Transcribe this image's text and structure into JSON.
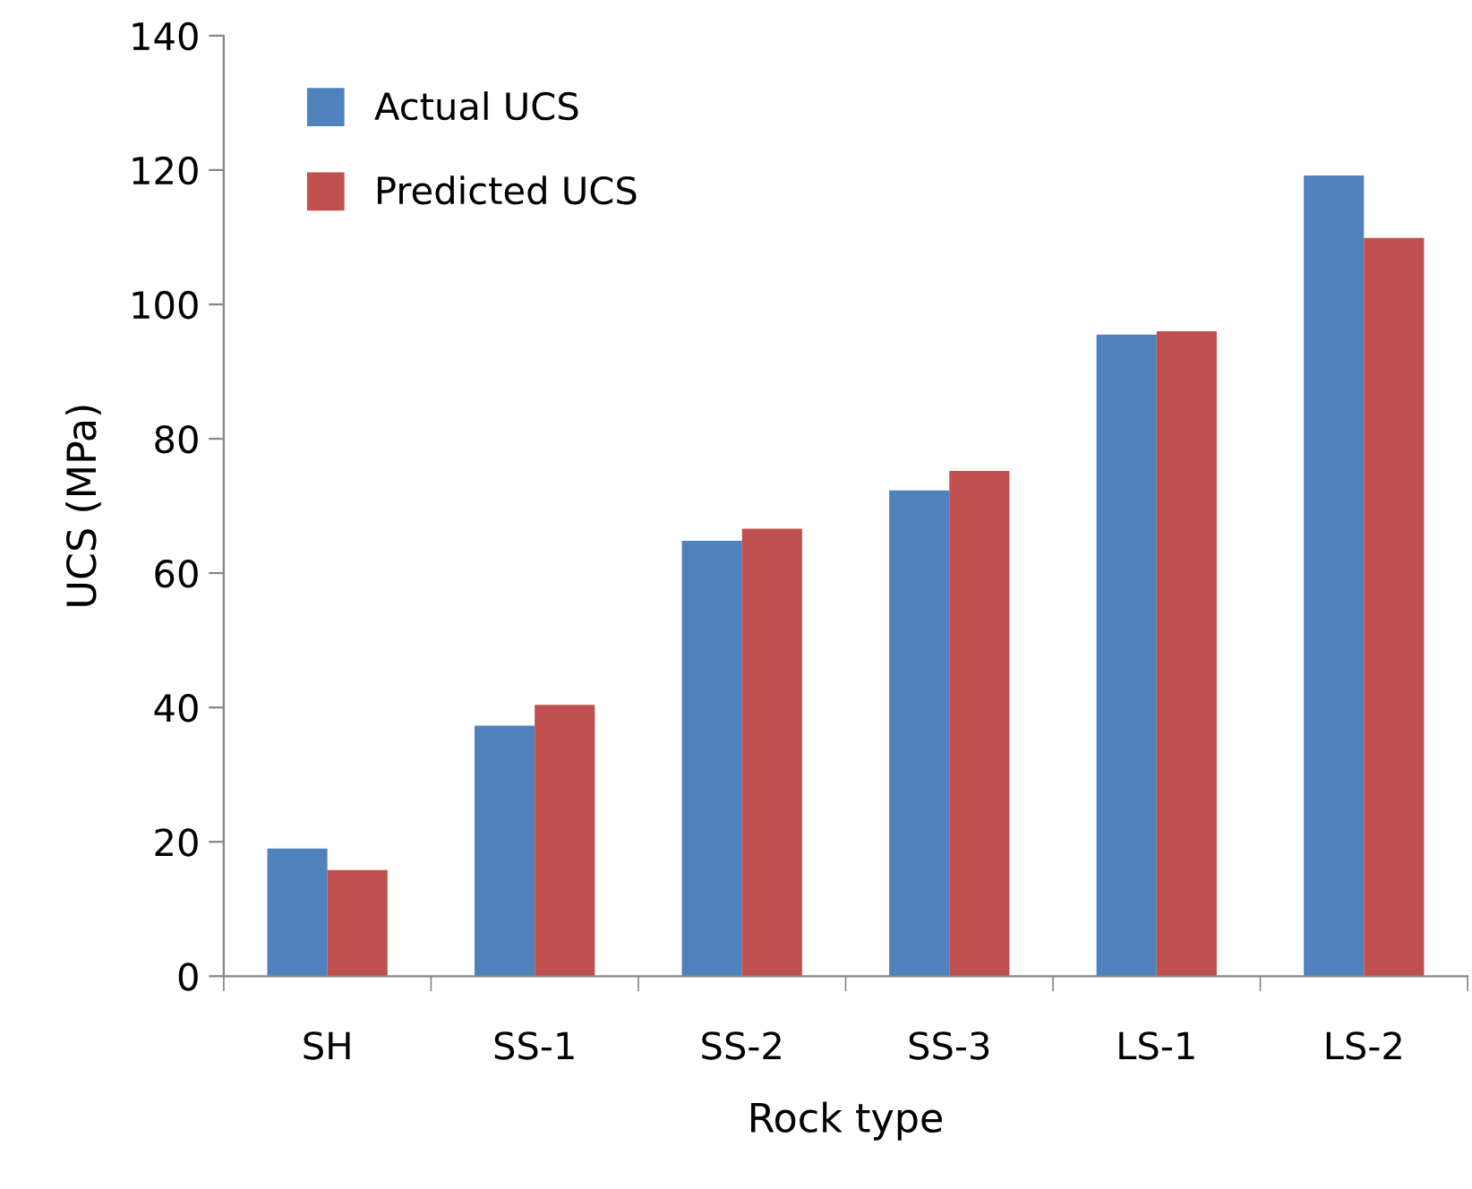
{
  "chart_data": {
    "type": "bar",
    "xlabel": "Rock type",
    "ylabel": "UCS (MPa)",
    "categories": [
      "SH",
      "SS-1",
      "SS-2",
      "SS-3",
      "LS-1",
      "LS-2"
    ],
    "series": [
      {
        "name": "Actual UCS",
        "color": "#4f81bd",
        "values": [
          19,
          37.3,
          64.8,
          72.3,
          95.5,
          119.2
        ]
      },
      {
        "name": "Predicted UCS",
        "color": "#c0504d",
        "values": [
          15.8,
          40.4,
          66.6,
          75.2,
          96,
          109.9
        ]
      }
    ],
    "ylim": [
      0,
      140
    ],
    "yticks": [
      0,
      20,
      40,
      60,
      80,
      100,
      120,
      140
    ],
    "grid": false,
    "legend": "top left"
  }
}
